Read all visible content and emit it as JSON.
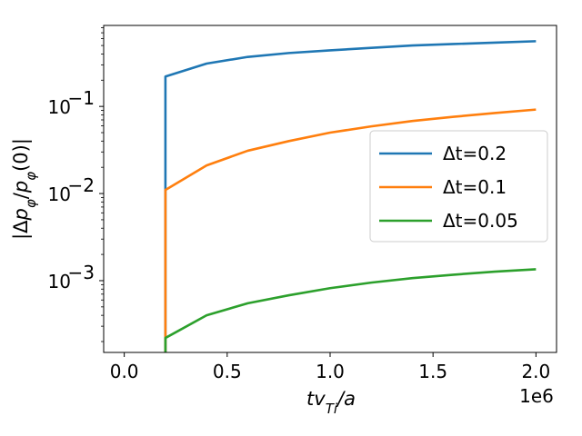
{
  "chart_data": {
    "type": "line",
    "xlabel": "tv_{Ti}/a",
    "ylabel": "|Δp_φ/p_φ(0)|",
    "x_offset_label": "1e6",
    "x_scale": "linear",
    "y_scale": "log",
    "xlim": [
      -0.1,
      2.1
    ],
    "ylim": [
      0.00015,
      0.85
    ],
    "x_ticks": [
      0.0,
      0.5,
      1.0,
      1.5,
      2.0
    ],
    "x_tick_labels": [
      "0.0",
      "0.5",
      "1.0",
      "1.5",
      "2.0"
    ],
    "y_ticks": [
      0.001,
      0.01,
      0.1
    ],
    "y_tick_labels": [
      "10",
      "10",
      "10"
    ],
    "y_tick_exponents": [
      "−3",
      "−2",
      "−1"
    ],
    "grid": false,
    "legend_position": "center-right",
    "series": [
      {
        "name": "Δt=0.2",
        "color": "#1f77b4",
        "x": [
          0.2,
          0.2,
          0.4,
          0.6,
          0.8,
          1.0,
          1.2,
          1.4,
          1.6,
          1.8,
          2.0
        ],
        "y": [
          0.00015,
          0.22,
          0.31,
          0.37,
          0.41,
          0.44,
          0.47,
          0.5,
          0.52,
          0.54,
          0.56
        ]
      },
      {
        "name": "Δt=0.1",
        "color": "#ff7f0e",
        "x": [
          0.2,
          0.2,
          0.4,
          0.6,
          0.8,
          1.0,
          1.2,
          1.4,
          1.6,
          1.8,
          2.0
        ],
        "y": [
          0.00015,
          0.011,
          0.021,
          0.031,
          0.04,
          0.05,
          0.059,
          0.068,
          0.076,
          0.084,
          0.092
        ]
      },
      {
        "name": "Δt=0.05",
        "color": "#2ca02c",
        "x": [
          0.2,
          0.2,
          0.4,
          0.6,
          0.8,
          1.0,
          1.2,
          1.4,
          1.6,
          1.8,
          2.0
        ],
        "y": [
          0.00015,
          0.00022,
          0.0004,
          0.00055,
          0.00068,
          0.00082,
          0.00095,
          0.00107,
          0.00117,
          0.00127,
          0.00135
        ]
      }
    ]
  }
}
